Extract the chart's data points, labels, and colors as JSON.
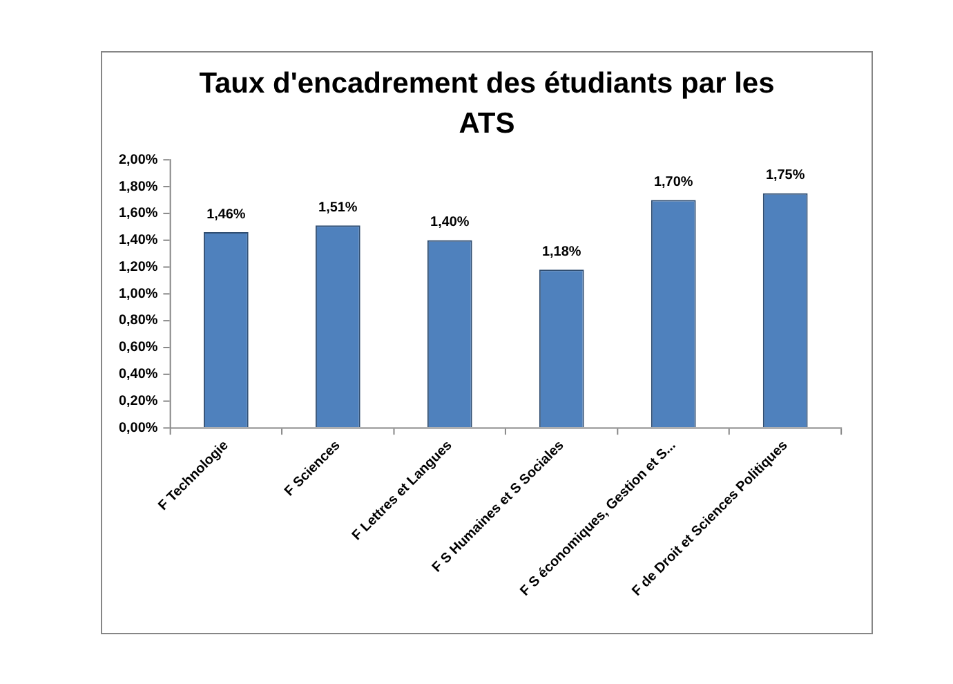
{
  "chart_data": {
    "type": "bar",
    "title": "Taux d'encadrement des étudiants par les ATS",
    "categories": [
      "F Technologie",
      "F Sciences",
      "F Lettres et Langues",
      "F S Humaines et S Sociales",
      "F S économiques, Gestion et S...",
      "F de Droit et Sciences Politiques"
    ],
    "values": [
      1.46,
      1.51,
      1.4,
      1.18,
      1.7,
      1.75
    ],
    "value_labels": [
      "1,46%",
      "1,51%",
      "1,40%",
      "1,18%",
      "1,70%",
      "1,75%"
    ],
    "color": "#4f81bd",
    "ylim": [
      0,
      2
    ],
    "yticks": [
      {
        "value": 0,
        "label": "0,00%"
      },
      {
        "value": 0.2,
        "label": "0,20%"
      },
      {
        "value": 0.4,
        "label": "0,40%"
      },
      {
        "value": 0.6,
        "label": "0,60%"
      },
      {
        "value": 0.8,
        "label": "0,80%"
      },
      {
        "value": 1,
        "label": "1,00%"
      },
      {
        "value": 1.2,
        "label": "1,20%"
      },
      {
        "value": 1.4,
        "label": "1,40%"
      },
      {
        "value": 1.6,
        "label": "1,60%"
      },
      {
        "value": 1.8,
        "label": "1,80%"
      },
      {
        "value": 2,
        "label": "2,00%"
      }
    ],
    "grid": false
  }
}
